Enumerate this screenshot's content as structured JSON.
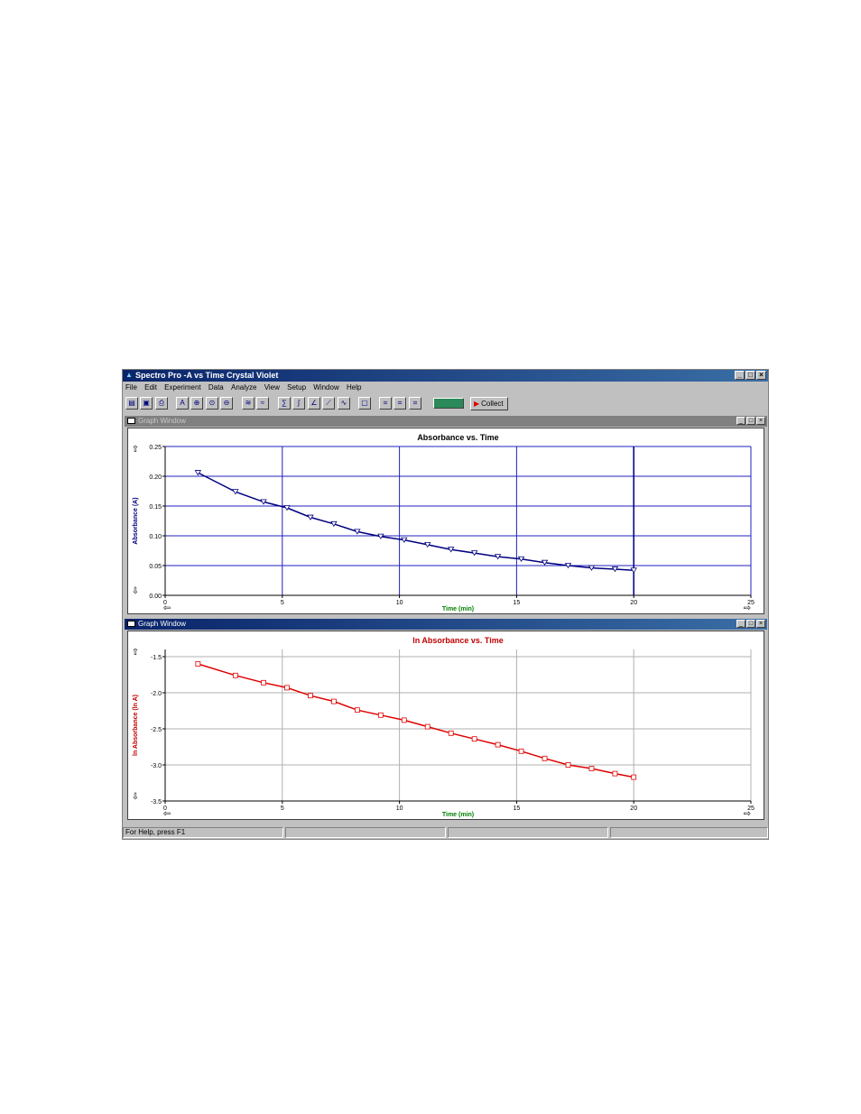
{
  "window": {
    "title": "Spectro Pro -A vs Time Crystal Violet",
    "buttons": [
      "_",
      "□",
      "×"
    ]
  },
  "menu": [
    "File",
    "Edit",
    "Experiment",
    "Data",
    "Analyze",
    "View",
    "Setup",
    "Window",
    "Help"
  ],
  "toolbar": {
    "collect_label": "Collect"
  },
  "graph_windows": [
    {
      "title": "Graph Window",
      "state": "inactive"
    },
    {
      "title": "Graph Window",
      "state": "active"
    }
  ],
  "status": {
    "help_text": "For Help, press F1"
  },
  "colors": {
    "series1": "#000080",
    "series2": "#e00000",
    "axis_label_y1": "#000080",
    "axis_label_y2": "#c00000",
    "axis_label_x": "#008000",
    "grid1": "#2020c0",
    "grid2": "#b0b0b0"
  },
  "chart_data": [
    {
      "type": "line",
      "title": "Absorbance vs. Time",
      "xlabel": "Time (min)",
      "ylabel": "Absorbance (A)",
      "xlim": [
        0,
        25
      ],
      "ylim": [
        0.0,
        0.25
      ],
      "x_ticks": [
        0,
        5,
        10,
        15,
        20,
        25
      ],
      "y_ticks": [
        0.0,
        0.05,
        0.1,
        0.15,
        0.2,
        0.25
      ],
      "y_tick_labels": [
        "0.00",
        "0.05",
        "0.10",
        "0.15",
        "0.20",
        "0.25"
      ],
      "grid": true,
      "cursor_x": 20,
      "marker": "triangle-down",
      "x": [
        1.4,
        3.0,
        4.2,
        5.2,
        6.2,
        7.2,
        8.2,
        9.2,
        10.2,
        11.2,
        12.2,
        13.2,
        14.2,
        15.2,
        16.2,
        17.2,
        18.2,
        19.2,
        20.0
      ],
      "values": [
        0.206,
        0.174,
        0.157,
        0.147,
        0.131,
        0.12,
        0.107,
        0.099,
        0.093,
        0.085,
        0.077,
        0.071,
        0.065,
        0.061,
        0.055,
        0.05,
        0.046,
        0.044,
        0.042
      ]
    },
    {
      "type": "line",
      "title": "ln Absorbance vs. Time",
      "xlabel": "Time (min)",
      "ylabel": "ln Absorbance (ln A)",
      "xlim": [
        0,
        25
      ],
      "ylim": [
        -3.5,
        -1.4
      ],
      "x_ticks": [
        0,
        5,
        10,
        15,
        20,
        25
      ],
      "y_ticks": [
        -3.5,
        -3.0,
        -2.5,
        -2.0,
        -1.5
      ],
      "y_tick_labels": [
        "-3.5",
        "-3.0",
        "-2.5",
        "-2.0",
        "-1.5"
      ],
      "grid": true,
      "marker": "square",
      "x": [
        1.4,
        3.0,
        4.2,
        5.2,
        6.2,
        7.2,
        8.2,
        9.2,
        10.2,
        11.2,
        12.2,
        13.2,
        14.2,
        15.2,
        16.2,
        17.2,
        18.2,
        19.2,
        20.0
      ],
      "values": [
        -1.6,
        -1.76,
        -1.86,
        -1.93,
        -2.04,
        -2.12,
        -2.24,
        -2.31,
        -2.38,
        -2.47,
        -2.56,
        -2.64,
        -2.72,
        -2.81,
        -2.91,
        -3.0,
        -3.05,
        -3.12,
        -3.17
      ]
    }
  ]
}
